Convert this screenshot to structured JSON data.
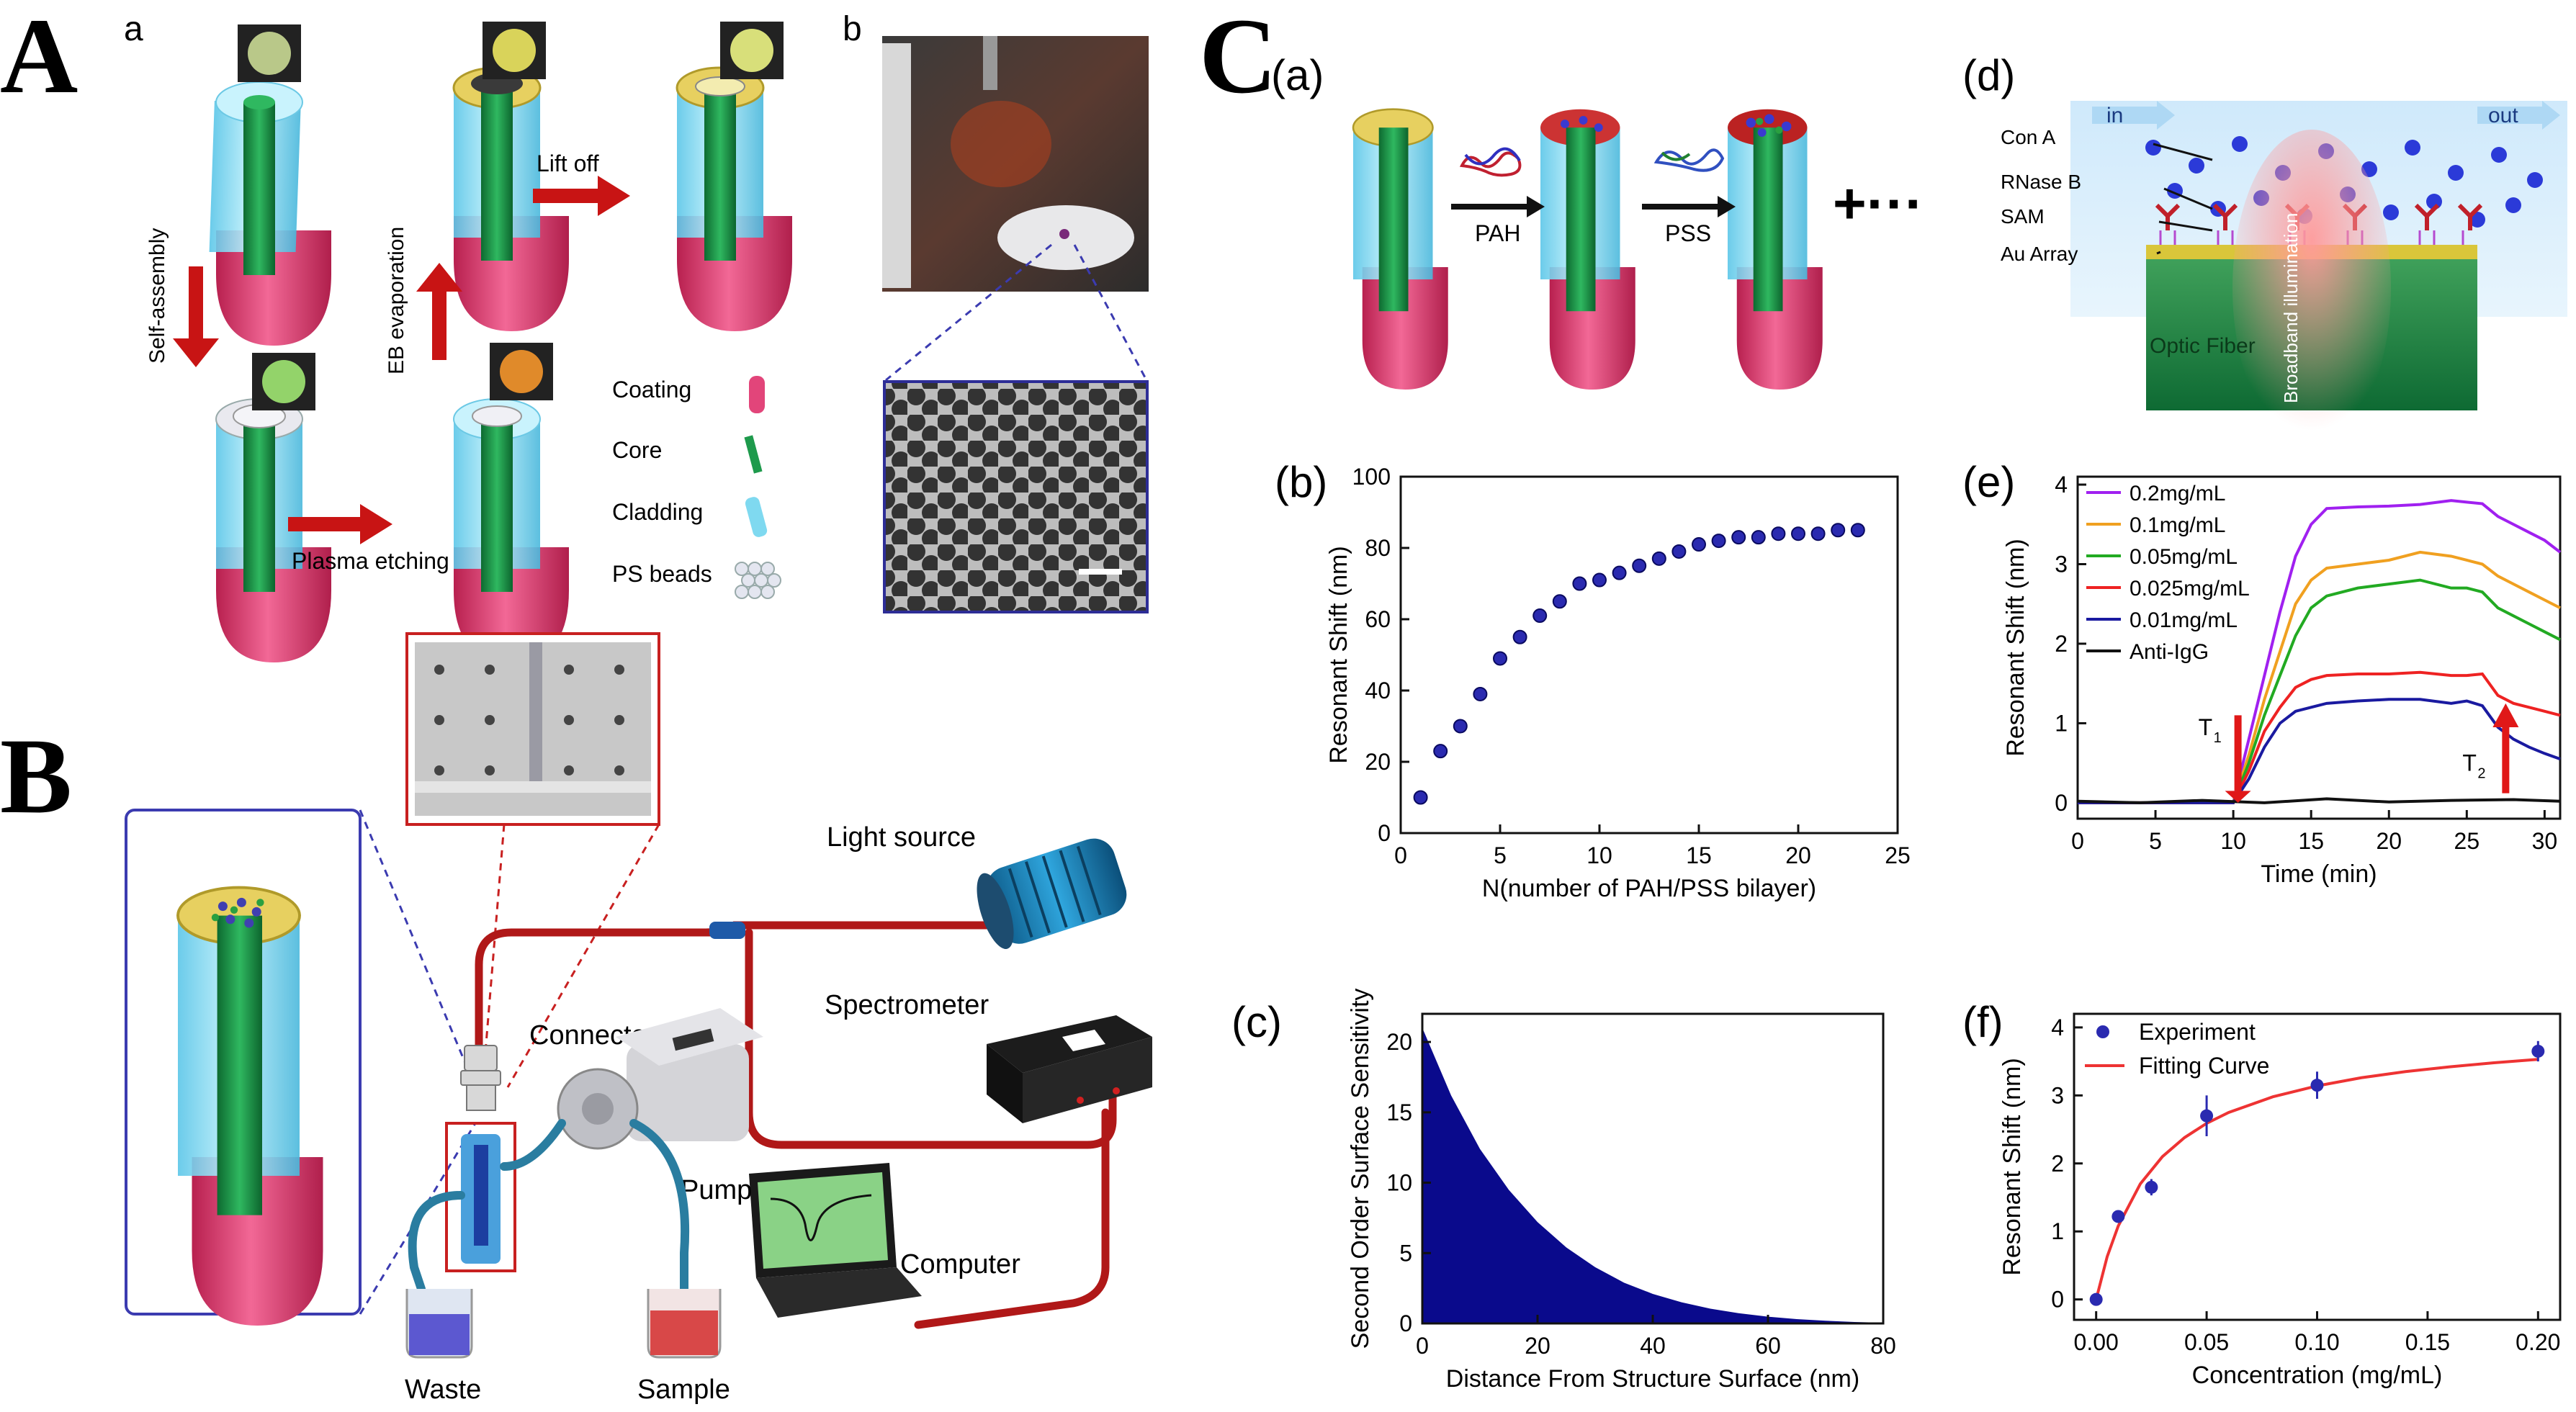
{
  "panels": {
    "A": {
      "letter": "A",
      "a": {
        "sub": "a",
        "steps": {
          "self_assembly": "Self-assembly",
          "plasma_etching": "Plasma etching",
          "eb_evaporation": "EB evaporation",
          "lift_off": "Lift off"
        },
        "legend": [
          "Coating",
          "Core",
          "Cladding",
          "PS beads"
        ]
      },
      "b": {
        "sub": "b"
      }
    },
    "B": {
      "letter": "B",
      "labels": {
        "light_source": "Light source",
        "spectrometer": "Spectrometer",
        "connector": "Connector",
        "pump": "Pump",
        "computer": "Computer",
        "waste": "Waste",
        "sample": "Sample"
      }
    },
    "C": {
      "letter": "C",
      "a": {
        "sub": "(a)",
        "pah": "PAH",
        "pss": "PSS",
        "plus": "+···"
      },
      "b": {
        "sub": "(b)"
      },
      "c": {
        "sub": "(c)"
      },
      "d": {
        "sub": "(d)",
        "in": "in",
        "out": "out",
        "labels": [
          "Con A",
          "RNase B",
          "SAM",
          "Au Array"
        ],
        "fiber": "Optic Fiber",
        "illum": "Broadband illumination"
      },
      "e": {
        "sub": "(e)",
        "t1": "T",
        "t1_sub": "1",
        "t2": "T",
        "t2_sub": "2"
      },
      "f": {
        "sub": "(f)"
      }
    }
  },
  "colors": {
    "cladding": "#7fd9f0",
    "core": "#1e9a4c",
    "coating": "#e2457a",
    "arrow_red": "#c81414",
    "navy": "#0a0a8c",
    "tube_red": "#b01818"
  },
  "chart_data": [
    {
      "id": "Cb",
      "type": "scatter",
      "xlabel": "N(number of PAH/PSS bilayer)",
      "ylabel": "Resonant Shift (nm)",
      "xlim": [
        0,
        25
      ],
      "ylim": [
        0,
        100
      ],
      "xticks": [
        0,
        5,
        10,
        15,
        20,
        25
      ],
      "yticks": [
        0,
        20,
        40,
        60,
        80,
        100
      ],
      "series": [
        {
          "x": [
            1,
            2,
            3,
            4,
            5,
            6,
            7,
            8,
            9,
            10,
            11,
            12,
            13,
            14,
            15,
            16,
            17,
            18,
            19,
            20,
            21,
            22,
            23
          ],
          "y": [
            10,
            23,
            30,
            39,
            49,
            55,
            61,
            65,
            70,
            71,
            73,
            75,
            77,
            79,
            81,
            82,
            83,
            83,
            84,
            84,
            84,
            85,
            85
          ]
        }
      ]
    },
    {
      "id": "Cc",
      "type": "area",
      "xlabel": "Distance From Structure Surface (nm)",
      "ylabel": "Second Order Surface Sensitivity",
      "xlim": [
        0,
        80
      ],
      "ylim": [
        0,
        22
      ],
      "xticks": [
        0,
        20,
        40,
        60,
        80
      ],
      "yticks": [
        0,
        5,
        10,
        15,
        20
      ],
      "series": [
        {
          "x": [
            0,
            5,
            10,
            15,
            20,
            25,
            30,
            35,
            40,
            45,
            50,
            55,
            60,
            65,
            70,
            75,
            80
          ],
          "y": [
            21,
            16.2,
            12.4,
            9.5,
            7.2,
            5.4,
            4,
            2.9,
            2.1,
            1.5,
            1.05,
            0.72,
            0.48,
            0.31,
            0.19,
            0.1,
            0.05
          ]
        }
      ]
    },
    {
      "id": "Ce",
      "type": "line",
      "xlabel": "Time (min)",
      "ylabel": "Resonant Shift (nm)",
      "xlim": [
        0,
        31
      ],
      "ylim": [
        -0.2,
        4.1
      ],
      "xticks": [
        0,
        5,
        10,
        15,
        20,
        25,
        30
      ],
      "yticks": [
        0,
        1,
        2,
        3,
        4
      ],
      "legend": "top-left",
      "series": [
        {
          "name": "0.2mg/mL",
          "color": "#a020f0",
          "x": [
            0,
            10,
            11,
            12,
            13,
            14,
            15,
            16,
            18,
            20,
            22,
            24,
            25,
            26,
            27,
            28,
            29,
            30,
            31
          ],
          "y": [
            0,
            0,
            0.8,
            1.6,
            2.4,
            3.1,
            3.5,
            3.7,
            3.72,
            3.73,
            3.75,
            3.8,
            3.78,
            3.76,
            3.6,
            3.5,
            3.4,
            3.3,
            3.15
          ]
        },
        {
          "name": "0.1mg/mL",
          "color": "#f0a020",
          "x": [
            0,
            10,
            11,
            12,
            13,
            14,
            15,
            16,
            18,
            20,
            22,
            24,
            25,
            26,
            27,
            28,
            29,
            30,
            31
          ],
          "y": [
            0,
            0,
            0.6,
            1.3,
            1.9,
            2.5,
            2.8,
            2.95,
            3.0,
            3.05,
            3.15,
            3.1,
            3.05,
            3.0,
            2.85,
            2.75,
            2.65,
            2.55,
            2.45
          ]
        },
        {
          "name": "0.05mg/mL",
          "color": "#22aa22",
          "x": [
            0,
            10,
            11,
            12,
            13,
            14,
            15,
            16,
            18,
            20,
            22,
            24,
            25,
            26,
            27,
            28,
            29,
            30,
            31
          ],
          "y": [
            0,
            0,
            0.5,
            1.1,
            1.6,
            2.1,
            2.45,
            2.6,
            2.7,
            2.75,
            2.8,
            2.7,
            2.7,
            2.65,
            2.45,
            2.35,
            2.25,
            2.15,
            2.05
          ]
        },
        {
          "name": "0.025mg/mL",
          "color": "#ee2222",
          "x": [
            0,
            10,
            11,
            12,
            13,
            14,
            15,
            16,
            18,
            20,
            22,
            24,
            25,
            26,
            27,
            28,
            29,
            30,
            31
          ],
          "y": [
            0,
            0,
            0.4,
            0.9,
            1.2,
            1.45,
            1.55,
            1.6,
            1.62,
            1.62,
            1.64,
            1.6,
            1.6,
            1.62,
            1.35,
            1.25,
            1.2,
            1.15,
            1.1
          ]
        },
        {
          "name": "0.01mg/mL",
          "color": "#1a1aa0",
          "x": [
            0,
            10,
            11,
            12,
            13,
            14,
            15,
            16,
            18,
            20,
            22,
            24,
            25,
            26,
            27,
            28,
            29,
            30,
            31
          ],
          "y": [
            0,
            0,
            0.3,
            0.7,
            1.0,
            1.15,
            1.2,
            1.25,
            1.28,
            1.3,
            1.3,
            1.25,
            1.28,
            1.22,
            0.95,
            0.8,
            0.7,
            0.62,
            0.55
          ]
        },
        {
          "name": "Anti-IgG",
          "color": "#111111",
          "x": [
            0,
            4,
            8,
            12,
            16,
            20,
            24,
            28,
            31
          ],
          "y": [
            0.02,
            0,
            0.03,
            0,
            0.05,
            0.01,
            0.03,
            0.04,
            0.02
          ]
        }
      ]
    },
    {
      "id": "Cf",
      "type": "scatter",
      "xlabel": "Concentration (mg/mL)",
      "ylabel": "Resonant Shift (nm)",
      "xlim": [
        -0.01,
        0.21
      ],
      "ylim": [
        -0.3,
        4.2
      ],
      "xticks": [
        0.0,
        0.05,
        0.1,
        0.15,
        0.2
      ],
      "yticks": [
        0,
        1,
        2,
        3,
        4
      ],
      "legend": "top-left",
      "series": [
        {
          "name": "Experiment",
          "x": [
            0,
            0.01,
            0.025,
            0.05,
            0.1,
            0.2
          ],
          "y": [
            0,
            1.22,
            1.65,
            2.7,
            3.15,
            3.65
          ],
          "err": [
            0.03,
            0.08,
            0.12,
            0.3,
            0.2,
            0.15
          ]
        },
        {
          "name": "Fitting Curve",
          "color": "#ee3333",
          "x": [
            0,
            0.005,
            0.01,
            0.02,
            0.03,
            0.04,
            0.05,
            0.06,
            0.08,
            0.1,
            0.12,
            0.14,
            0.16,
            0.18,
            0.2
          ],
          "y": [
            0,
            0.63,
            1.08,
            1.7,
            2.1,
            2.38,
            2.59,
            2.75,
            2.98,
            3.14,
            3.26,
            3.35,
            3.42,
            3.48,
            3.53
          ]
        }
      ]
    }
  ]
}
